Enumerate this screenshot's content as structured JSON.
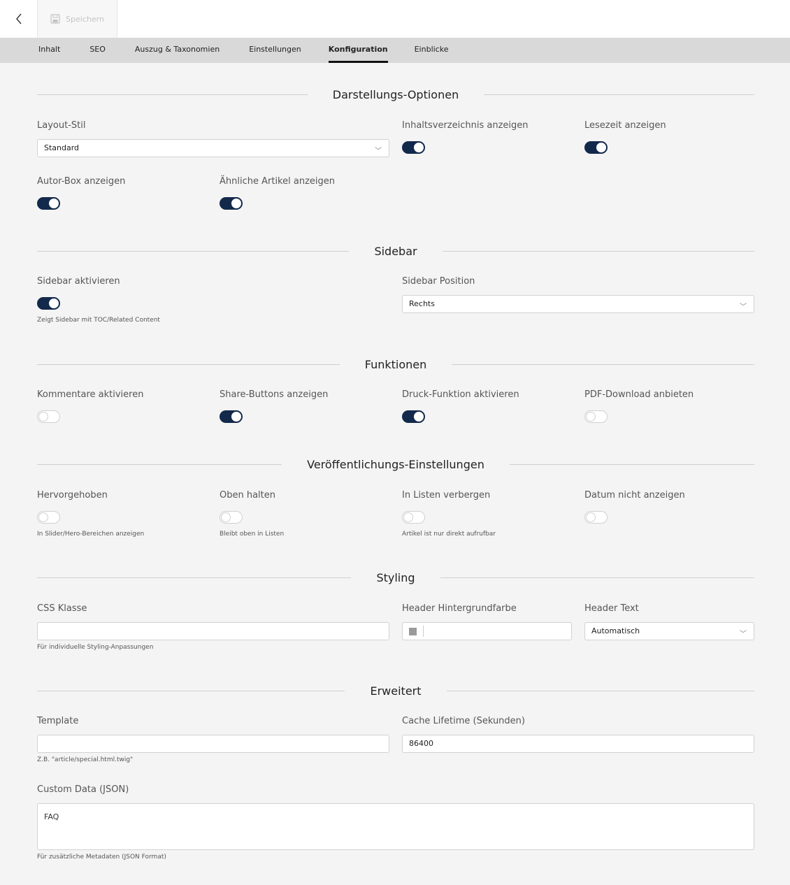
{
  "toolbar": {
    "save_label": "Speichern"
  },
  "tabs": [
    {
      "label": "Inhalt"
    },
    {
      "label": "SEO"
    },
    {
      "label": "Auszug & Taxonomien"
    },
    {
      "label": "Einstellungen"
    },
    {
      "label": "Konfiguration",
      "active": true
    },
    {
      "label": "Einblicke"
    }
  ],
  "sections": {
    "display": {
      "title": "Darstellungs-Optionen",
      "layout_label": "Layout-Stil",
      "layout_value": "Standard",
      "toc_label": "Inhaltsverzeichnis anzeigen",
      "toc_on": true,
      "readtime_label": "Lesezeit anzeigen",
      "readtime_on": true,
      "author_label": "Autor-Box anzeigen",
      "author_on": true,
      "related_label": "Ähnliche Artikel anzeigen",
      "related_on": true
    },
    "sidebar": {
      "title": "Sidebar",
      "enable_label": "Sidebar aktivieren",
      "enable_on": true,
      "enable_help": "Zeigt Sidebar mit TOC/Related Content",
      "position_label": "Sidebar Position",
      "position_value": "Rechts"
    },
    "functions": {
      "title": "Funktionen",
      "comments_label": "Kommentare aktivieren",
      "comments_on": false,
      "share_label": "Share-Buttons anzeigen",
      "share_on": true,
      "print_label": "Druck-Funktion aktivieren",
      "print_on": true,
      "pdf_label": "PDF-Download anbieten",
      "pdf_on": false
    },
    "publish": {
      "title": "Veröffentlichungs-Einstellungen",
      "featured_label": "Hervorgehoben",
      "featured_help": "In Slider/Hero-Bereichen anzeigen",
      "sticky_label": "Oben halten",
      "sticky_help": "Bleibt oben in Listen",
      "hidden_label": "In Listen verbergen",
      "hidden_help": "Artikel ist nur direkt aufrufbar",
      "nodate_label": "Datum nicht anzeigen"
    },
    "styling": {
      "title": "Styling",
      "css_label": "CSS Klasse",
      "css_value": "",
      "css_help": "Für individuelle Styling-Anpassungen",
      "bg_label": "Header Hintergrundfarbe",
      "bg_swatch": "#9a9a9a",
      "text_label": "Header Text",
      "text_value": "Automatisch"
    },
    "advanced": {
      "title": "Erweitert",
      "template_label": "Template",
      "template_value": "",
      "template_help": "Z.B. \"article/special.html.twig\"",
      "cache_label": "Cache Lifetime (Sekunden)",
      "cache_value": "86400",
      "custom_label": "Custom Data (JSON)",
      "custom_value": "FAQ",
      "custom_help": "Für zusätzliche Metadaten (JSON Format)"
    }
  },
  "colors": {
    "accent": "#13294b"
  }
}
